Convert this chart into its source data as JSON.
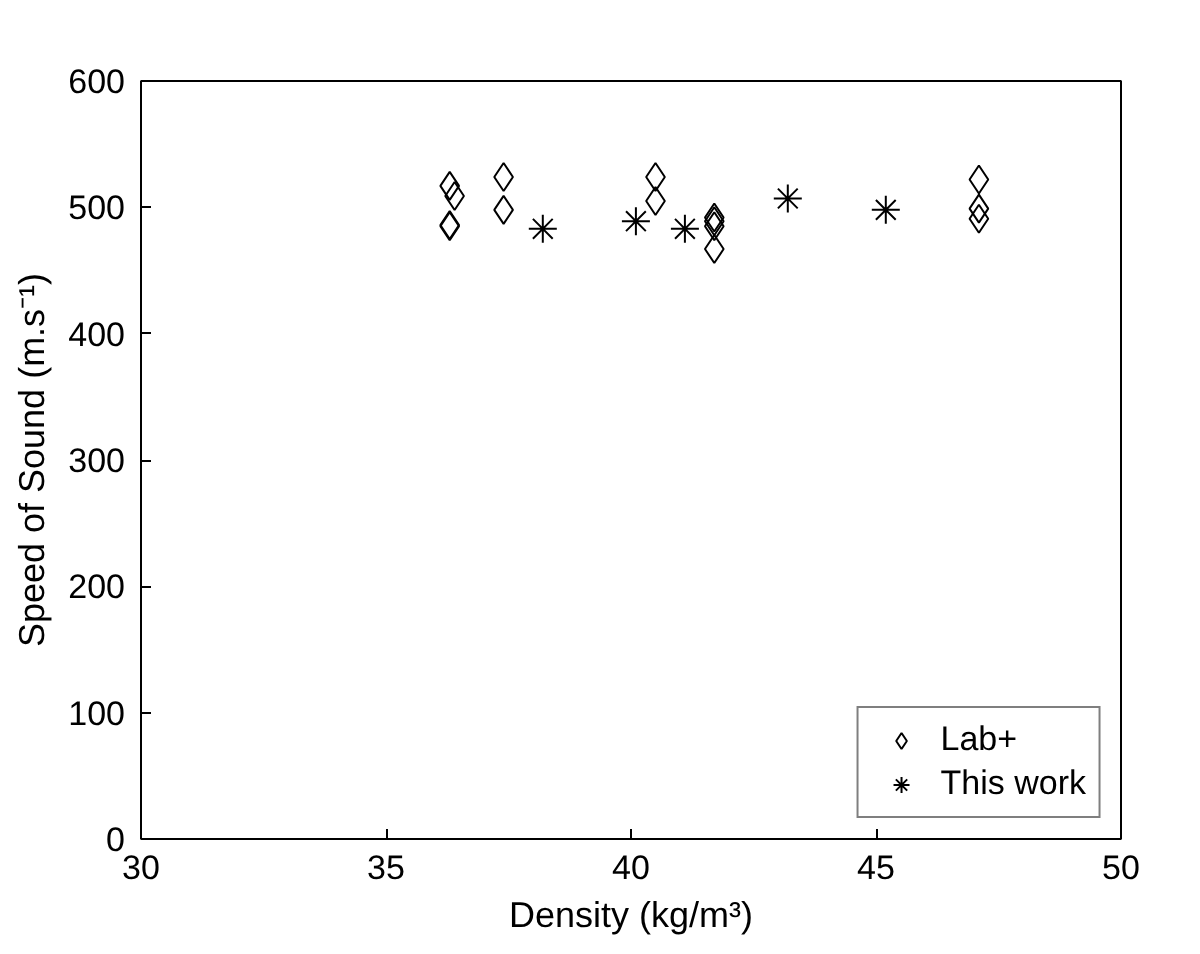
{
  "chart_data": {
    "type": "scatter",
    "xlabel": "Density (kg/m³)",
    "ylabel": "Speed of Sound (m.s⁻¹)",
    "xlim": [
      30,
      50
    ],
    "xticks": [
      30,
      35,
      40,
      45,
      50
    ],
    "ylim": [
      0,
      600
    ],
    "yticks": [
      0,
      100,
      200,
      300,
      400,
      500,
      600
    ],
    "grid": false,
    "legend": "bottom right",
    "series": [
      {
        "name": "Lab+",
        "color": "#000000",
        "marker": "diamond",
        "x": [
          36.3,
          36.4,
          36.3,
          36.3,
          37.4,
          37.4,
          40.5,
          40.5,
          41.7,
          41.7,
          41.7,
          41.7,
          47.1,
          47.1,
          47.1
        ],
        "values": [
          517,
          509,
          486,
          485,
          524,
          498,
          524,
          505,
          492,
          485,
          489,
          467,
          522,
          499,
          491
        ]
      },
      {
        "name": "This work",
        "color": "#000000",
        "marker": "cross",
        "x": [
          38.2,
          40.1,
          41.1,
          43.2,
          45.2
        ],
        "values": [
          483,
          489,
          483,
          507,
          498
        ]
      }
    ]
  }
}
